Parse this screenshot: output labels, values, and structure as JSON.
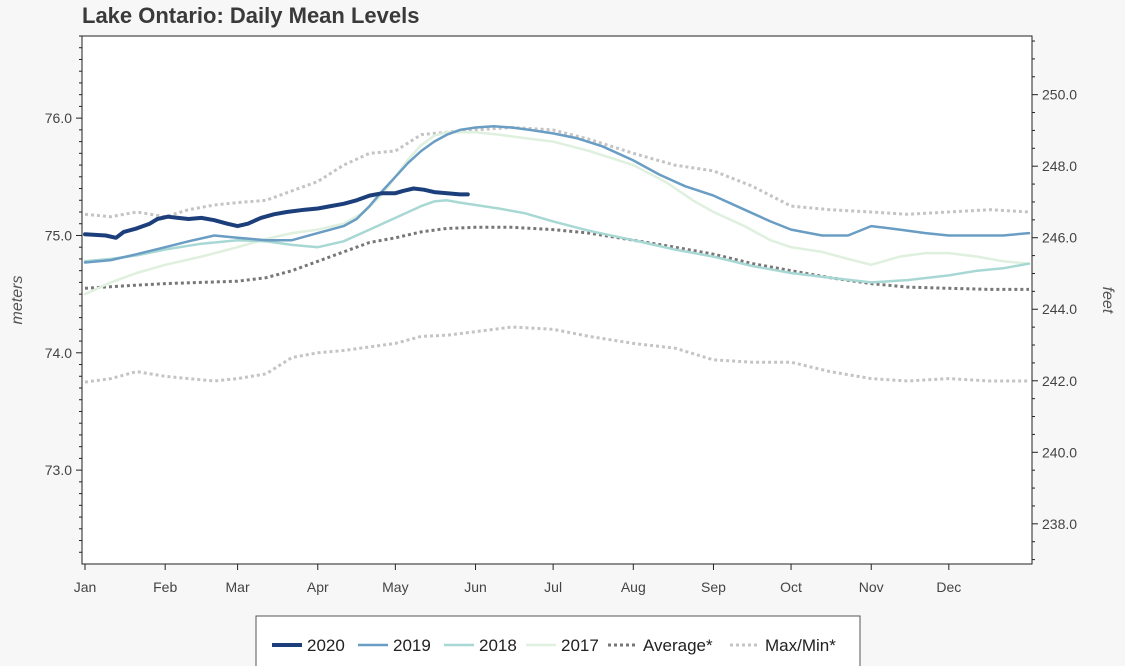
{
  "chart_data": {
    "type": "line",
    "title": "Lake Ontario: Daily Mean Levels",
    "ylabel": "meters",
    "ylabel_right": "feet",
    "xlabel": "",
    "ylim": [
      72.2,
      76.7
    ],
    "ylim_right_ticks": [
      238.0,
      240.0,
      242.0,
      244.0,
      246.0,
      248.0,
      250.0
    ],
    "y_ticks": [
      73.0,
      74.0,
      75.0,
      76.0
    ],
    "y_tick_labels": [
      "73.0",
      "74.0",
      "75.0",
      "76.0"
    ],
    "y_right_tick_labels": [
      "238.0",
      "240.0",
      "242.0",
      "244.0",
      "246.0",
      "248.0",
      "250.0"
    ],
    "x_ticks": [
      "Jan",
      "Feb",
      "Mar",
      "Apr",
      "May",
      "Jun",
      "Jul",
      "Aug",
      "Sep",
      "Oct",
      "Nov",
      "Dec"
    ],
    "x_tick_days": [
      0,
      31,
      59,
      90,
      120,
      151,
      181,
      212,
      243,
      273,
      304,
      334
    ],
    "xlim_days": [
      0,
      365
    ],
    "grid": false,
    "legend_position": "bottom-center",
    "series": [
      {
        "name": "2020",
        "style": "solid-thick",
        "color": "#1c3f7c",
        "x_days": [
          0,
          8,
          12,
          15,
          20,
          25,
          28,
          32,
          36,
          40,
          45,
          50,
          55,
          59,
          63,
          68,
          73,
          78,
          85,
          90,
          95,
          100,
          105,
          110,
          115,
          120,
          123,
          127,
          131,
          135,
          140,
          145,
          148
        ],
        "y": [
          75.01,
          75.0,
          74.98,
          75.03,
          75.06,
          75.1,
          75.14,
          75.16,
          75.15,
          75.14,
          75.15,
          75.13,
          75.1,
          75.08,
          75.1,
          75.15,
          75.18,
          75.2,
          75.22,
          75.23,
          75.25,
          75.27,
          75.3,
          75.34,
          75.36,
          75.36,
          75.38,
          75.4,
          75.39,
          75.37,
          75.36,
          75.35,
          75.35
        ]
      },
      {
        "name": "2019",
        "style": "solid",
        "color": "#6a9dc4",
        "x_days": [
          0,
          10,
          20,
          31,
          40,
          50,
          59,
          70,
          80,
          90,
          100,
          105,
          110,
          115,
          120,
          125,
          130,
          135,
          140,
          145,
          151,
          158,
          165,
          172,
          181,
          190,
          200,
          212,
          222,
          232,
          243,
          255,
          265,
          273,
          285,
          295,
          304,
          315,
          325,
          334,
          345,
          355,
          365
        ],
        "y": [
          74.77,
          74.79,
          74.84,
          74.9,
          74.95,
          75.0,
          74.98,
          74.96,
          74.96,
          75.02,
          75.08,
          75.14,
          75.25,
          75.38,
          75.5,
          75.62,
          75.72,
          75.8,
          75.86,
          75.9,
          75.92,
          75.93,
          75.92,
          75.9,
          75.87,
          75.83,
          75.76,
          75.64,
          75.52,
          75.42,
          75.34,
          75.22,
          75.12,
          75.05,
          75.0,
          75.0,
          75.08,
          75.05,
          75.02,
          75.0,
          75.0,
          75.0,
          75.02
        ]
      },
      {
        "name": "2018",
        "style": "solid",
        "color": "#a8d8d4",
        "x_days": [
          0,
          10,
          20,
          31,
          45,
          59,
          70,
          80,
          90,
          100,
          110,
          120,
          130,
          135,
          140,
          145,
          151,
          160,
          170,
          181,
          195,
          212,
          228,
          243,
          258,
          273,
          288,
          304,
          318,
          334,
          345,
          355,
          365
        ],
        "y": [
          74.78,
          74.8,
          74.83,
          74.88,
          74.93,
          74.96,
          74.95,
          74.92,
          74.9,
          74.95,
          75.05,
          75.15,
          75.25,
          75.29,
          75.3,
          75.28,
          75.26,
          75.23,
          75.19,
          75.12,
          75.04,
          74.96,
          74.88,
          74.82,
          74.74,
          74.68,
          74.64,
          74.6,
          74.62,
          74.66,
          74.7,
          74.72,
          74.76
        ]
      },
      {
        "name": "2017",
        "style": "solid",
        "color": "#dff0df",
        "x_days": [
          0,
          10,
          20,
          31,
          45,
          59,
          70,
          80,
          90,
          100,
          108,
          115,
          120,
          125,
          130,
          135,
          140,
          145,
          151,
          160,
          170,
          181,
          195,
          212,
          225,
          235,
          243,
          255,
          265,
          273,
          285,
          295,
          304,
          315,
          325,
          334,
          345,
          355,
          365
        ],
        "y": [
          74.5,
          74.6,
          74.68,
          74.75,
          74.82,
          74.9,
          74.97,
          75.02,
          75.05,
          75.1,
          75.2,
          75.35,
          75.5,
          75.65,
          75.77,
          75.85,
          75.88,
          75.88,
          75.88,
          75.86,
          75.83,
          75.8,
          75.72,
          75.6,
          75.45,
          75.3,
          75.2,
          75.08,
          74.96,
          74.9,
          74.86,
          74.8,
          74.75,
          74.82,
          74.85,
          74.85,
          74.82,
          74.78,
          74.76
        ]
      },
      {
        "name": "Average*",
        "style": "dotted",
        "color": "#777777",
        "x_days": [
          0,
          15,
          31,
          45,
          59,
          70,
          80,
          90,
          100,
          110,
          120,
          130,
          140,
          151,
          165,
          181,
          195,
          212,
          228,
          243,
          258,
          273,
          288,
          304,
          318,
          334,
          350,
          365
        ],
        "y": [
          74.55,
          74.57,
          74.59,
          74.6,
          74.61,
          74.64,
          74.7,
          74.78,
          74.86,
          74.94,
          74.98,
          75.03,
          75.06,
          75.07,
          75.07,
          75.05,
          75.02,
          74.96,
          74.9,
          74.84,
          74.76,
          74.7,
          74.64,
          74.59,
          74.56,
          74.55,
          74.54,
          74.54
        ]
      },
      {
        "name": "Max/Min*",
        "style": "dotted",
        "color": "#c4c4c4",
        "x_days": [
          0,
          10,
          20,
          31,
          40,
          50,
          59,
          70,
          80,
          90,
          100,
          110,
          120,
          130,
          140,
          151,
          165,
          181,
          195,
          212,
          228,
          243,
          258,
          273,
          288,
          304,
          318,
          334,
          350,
          365
        ],
        "y": [
          75.18,
          75.16,
          75.2,
          75.16,
          75.22,
          75.26,
          75.28,
          75.3,
          75.38,
          75.46,
          75.6,
          75.7,
          75.72,
          75.86,
          75.88,
          75.9,
          75.92,
          75.9,
          75.82,
          75.7,
          75.6,
          75.55,
          75.42,
          75.25,
          75.22,
          75.2,
          75.18,
          75.2,
          75.22,
          75.2
        ],
        "y_min": [
          73.75,
          73.78,
          73.84,
          73.8,
          73.78,
          73.76,
          73.78,
          73.82,
          73.96,
          74.0,
          74.02,
          74.05,
          74.08,
          74.14,
          74.15,
          74.18,
          74.22,
          74.2,
          74.14,
          74.08,
          74.04,
          73.94,
          73.92,
          73.92,
          73.84,
          73.78,
          73.76,
          73.78,
          73.76,
          73.76
        ]
      }
    ]
  }
}
